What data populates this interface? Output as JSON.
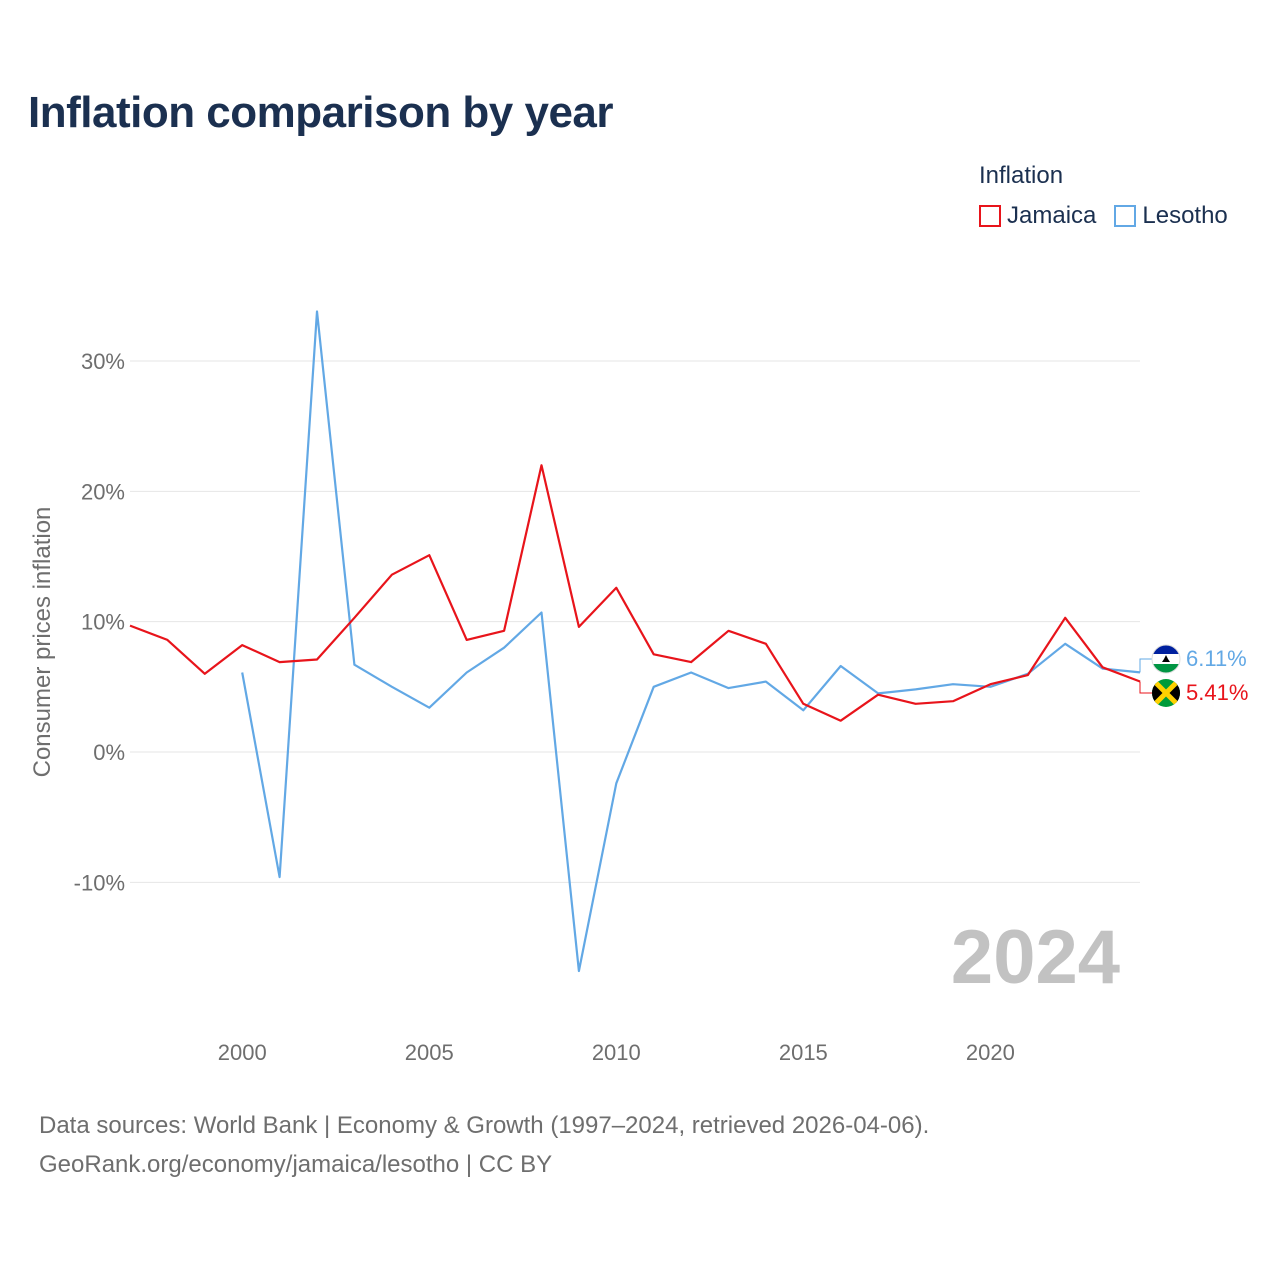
{
  "title": "Inflation comparison by year",
  "legend": {
    "title": "Inflation",
    "items": [
      {
        "label": "Jamaica",
        "color": "#e8141b"
      },
      {
        "label": "Lesotho",
        "color": "#62a8e5"
      }
    ]
  },
  "footer": {
    "line1": "Data sources: World Bank | Economy & Growth (1997–2024, retrieved 2026-04-06).",
    "line2": "GeoRank.org/economy/jamaica/lesotho | CC BY"
  },
  "chart_data": {
    "type": "line",
    "title": "Inflation comparison by year",
    "xlabel": "",
    "ylabel": "Consumer prices inflation",
    "xlim": [
      1997,
      2024
    ],
    "ylim": [
      -20,
      35
    ],
    "x_ticks": [
      2000,
      2005,
      2010,
      2015,
      2020
    ],
    "y_ticks": [
      30,
      20,
      10,
      0,
      -10
    ],
    "y_tick_labels": [
      "30%",
      "20%",
      "10%",
      "0%",
      "-10%"
    ],
    "grid": true,
    "watermark_year": "2024",
    "series": [
      {
        "name": "Jamaica",
        "color": "#e8141b",
        "x": [
          1997,
          1998,
          1999,
          2000,
          2001,
          2002,
          2003,
          2004,
          2005,
          2006,
          2007,
          2008,
          2009,
          2010,
          2011,
          2012,
          2013,
          2014,
          2015,
          2016,
          2017,
          2018,
          2019,
          2020,
          2021,
          2022,
          2023,
          2024
        ],
        "values": [
          9.7,
          8.6,
          6.0,
          8.2,
          6.9,
          7.1,
          10.3,
          13.6,
          15.1,
          8.6,
          9.3,
          22.0,
          9.6,
          12.6,
          7.5,
          6.9,
          9.3,
          8.3,
          3.7,
          2.4,
          4.4,
          3.7,
          3.9,
          5.2,
          5.9,
          10.3,
          6.5,
          5.41
        ],
        "end_label": "5.41%"
      },
      {
        "name": "Lesotho",
        "color": "#62a8e5",
        "x": [
          2000,
          2001,
          2002,
          2003,
          2004,
          2005,
          2006,
          2007,
          2008,
          2009,
          2010,
          2011,
          2012,
          2013,
          2014,
          2015,
          2016,
          2017,
          2018,
          2019,
          2020,
          2021,
          2022,
          2023,
          2024
        ],
        "values": [
          6.1,
          -9.6,
          33.8,
          6.7,
          5.0,
          3.4,
          6.1,
          8.0,
          10.7,
          -16.8,
          -2.4,
          5.0,
          6.1,
          4.9,
          5.4,
          3.2,
          6.6,
          4.5,
          4.8,
          5.2,
          5.0,
          6.0,
          8.3,
          6.4,
          6.11
        ],
        "end_label": "6.11%"
      }
    ]
  }
}
